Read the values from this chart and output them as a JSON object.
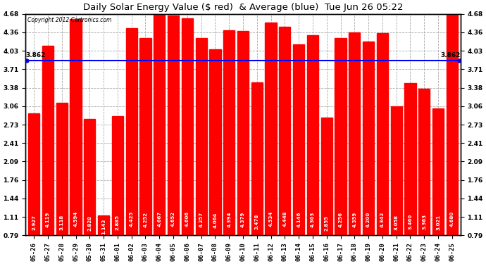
{
  "title": "Daily Solar Energy Value ($ red)  & Average (blue)  Tue Jun 26 05:22",
  "copyright": "Copyright 2012 Cartronics.com",
  "categories": [
    "05-26",
    "05-27",
    "05-28",
    "05-29",
    "05-30",
    "05-31",
    "06-01",
    "06-02",
    "06-03",
    "06-04",
    "06-05",
    "06-06",
    "06-07",
    "06-08",
    "06-09",
    "06-10",
    "06-11",
    "06-12",
    "06-13",
    "06-14",
    "06-15",
    "06-16",
    "06-17",
    "06-18",
    "06-19",
    "06-20",
    "06-21",
    "06-22",
    "06-23",
    "06-24",
    "06-25"
  ],
  "values": [
    2.927,
    4.119,
    3.118,
    4.594,
    2.828,
    1.143,
    2.885,
    4.425,
    4.252,
    4.667,
    4.652,
    4.606,
    4.257,
    4.064,
    4.394,
    4.379,
    3.478,
    4.534,
    4.448,
    4.146,
    4.303,
    2.855,
    4.256,
    4.359,
    4.2,
    4.342,
    3.058,
    3.46,
    3.363,
    3.021,
    4.68
  ],
  "average": 3.862,
  "bar_color": "#ff0000",
  "avg_line_color": "#0000ff",
  "background_color": "#ffffff",
  "plot_bg_color": "#ffffff",
  "grid_color": "#aaaaaa",
  "ymin": 0.79,
  "ymax": 4.68,
  "yticks": [
    0.79,
    1.11,
    1.44,
    1.76,
    2.09,
    2.41,
    2.73,
    3.06,
    3.38,
    3.71,
    4.03,
    4.36,
    4.68
  ],
  "title_fontsize": 9.5,
  "bar_value_fontsize": 5.0,
  "tick_fontsize": 6.5,
  "avg_label": "3.862",
  "avg_label_fontsize": 6.5
}
